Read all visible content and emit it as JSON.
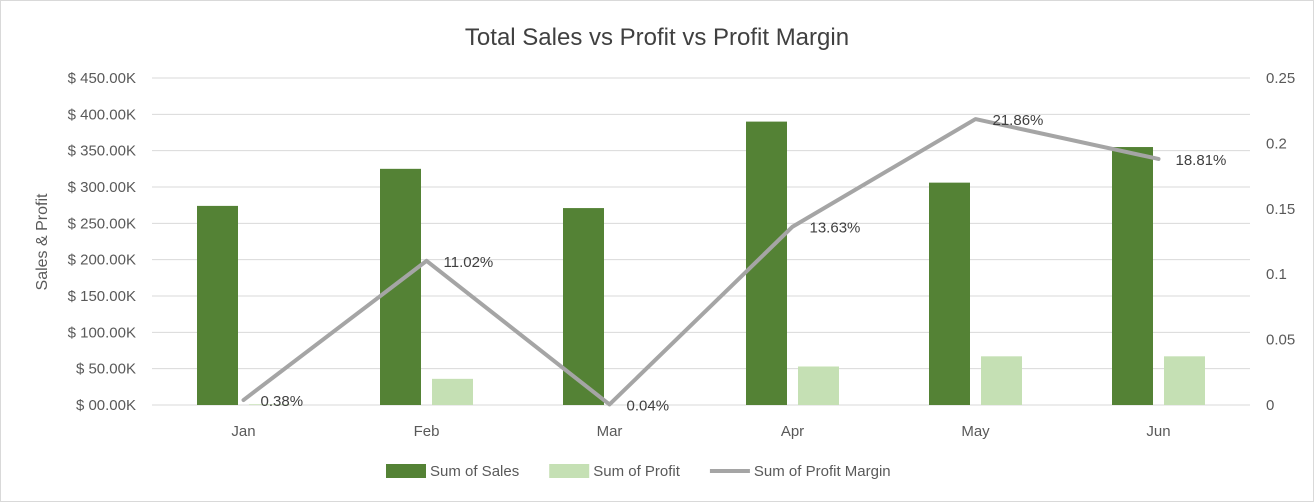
{
  "chart_data": {
    "type": "bar",
    "title": "Total Sales vs Profit vs Profit Margin",
    "ylabel": "Sales & Profit",
    "categories": [
      "Jan",
      "Feb",
      "Mar",
      "Apr",
      "May",
      "Jun"
    ],
    "y_ticks": [
      "$ 00.00K",
      "$ 50.00K",
      "$ 100.00K",
      "$ 150.00K",
      "$ 200.00K",
      "$ 250.00K",
      "$ 300.00K",
      "$ 350.00K",
      "$ 400.00K",
      "$ 450.00K"
    ],
    "y2_ticks": [
      "0",
      "0.05",
      "0.1",
      "0.15",
      "0.2",
      "0.25"
    ],
    "ylim": [
      0,
      450000
    ],
    "y2lim": [
      0,
      0.25
    ],
    "grid": true,
    "legend_position": "bottom",
    "series": [
      {
        "name": "Sum of Sales",
        "kind": "bar",
        "axis": "left",
        "color": "#548235",
        "values": [
          274000,
          325000,
          271000,
          390000,
          306000,
          355000
        ]
      },
      {
        "name": "Sum of Profit",
        "kind": "bar",
        "axis": "left",
        "color": "#c5e0b4",
        "values": [
          1000,
          36000,
          100,
          53000,
          67000,
          67000
        ]
      },
      {
        "name": "Sum of Profit Margin",
        "kind": "line",
        "axis": "right",
        "color": "#a5a5a5",
        "values": [
          0.0038,
          0.1102,
          0.0004,
          0.1363,
          0.2186,
          0.1881
        ],
        "labels": [
          "0.38%",
          "11.02%",
          "0.04%",
          "13.63%",
          "21.86%",
          "18.81%"
        ]
      }
    ]
  }
}
